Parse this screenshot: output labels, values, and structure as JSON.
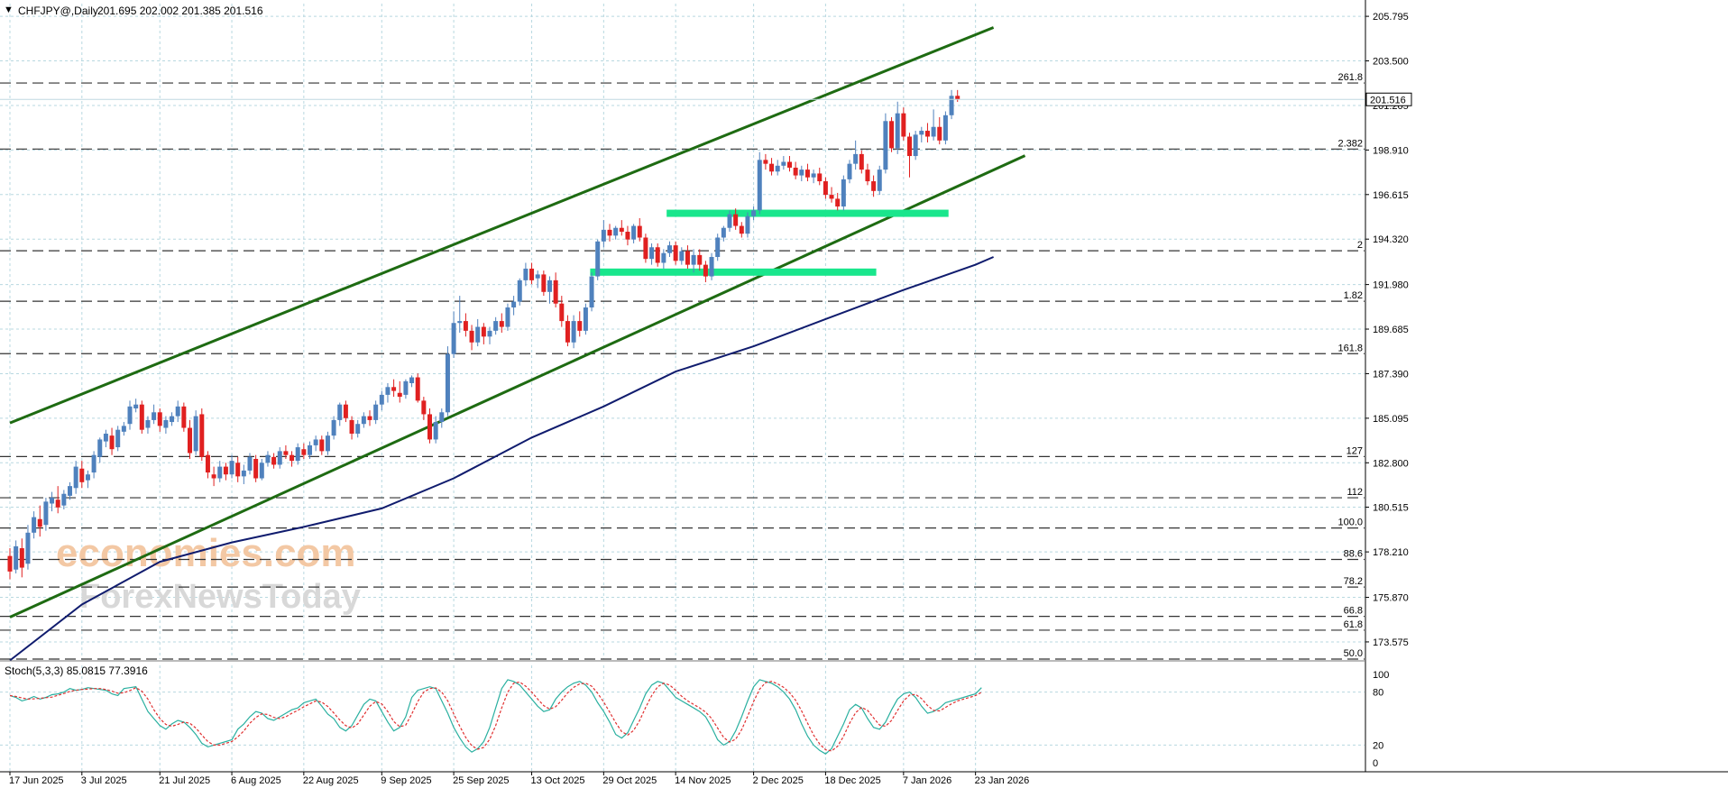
{
  "header": {
    "menu_arrow": "▼",
    "symbol": "CHFJPY@,Daily",
    "ohlc": "201.695 202.002 201.385 201.516"
  },
  "stoch_header": "Stoch(5,3,3) 85.0815 77.3916",
  "watermark": {
    "line1": "economies.com",
    "line2": "ForexNewsToday"
  },
  "colors": {
    "bull": "#4f81bd",
    "bear": "#e02020",
    "channel": "#1e6b12",
    "ma": "#101c6e",
    "zone": "#19e68c",
    "stoch_main": "#2ab0a0",
    "stoch_signal": "#e03030",
    "grid": "#b8d8e0",
    "fib": "#333333"
  },
  "price_axis": {
    "ticks": [
      "205.795",
      "203.500",
      "201.205",
      "198.910",
      "196.615",
      "194.320",
      "191.980",
      "189.685",
      "187.390",
      "185.095",
      "182.800",
      "180.515",
      "178.210",
      "175.870",
      "173.575"
    ],
    "current_price": "201.516"
  },
  "fib_levels": [
    {
      "label": "261.8",
      "price": 202.36
    },
    {
      "label": "2.382",
      "price": 198.96
    },
    {
      "label": "2",
      "price": 193.72
    },
    {
      "label": "1.82",
      "price": 191.12
    },
    {
      "label": "161.8",
      "price": 188.42
    },
    {
      "label": "127",
      "price": 183.12
    },
    {
      "label": "112",
      "price": 181.0
    },
    {
      "label": "100.0",
      "price": 179.44
    },
    {
      "label": "88.6",
      "price": 177.82
    },
    {
      "label": "78.2",
      "price": 176.4
    },
    {
      "label": "66.8",
      "price": 174.89
    },
    {
      "label": "61.8",
      "price": 174.18
    },
    {
      "label": "50.0",
      "price": 172.69
    }
  ],
  "stoch_axis": [
    "100",
    "80",
    "20",
    "0"
  ],
  "time_axis": [
    "17 Jun 2025",
    "3 Jul 2025",
    "21 Jul 2025",
    "6 Aug 2025",
    "22 Aug 2025",
    "9 Sep 2025",
    "25 Sep 2025",
    "13 Oct 2025",
    "29 Oct 2025",
    "14 Nov 2025",
    "2 Dec 2025",
    "18 Dec 2025",
    "7 Jan 2026",
    "23 Jan 2026"
  ],
  "chart_data": {
    "type": "candlestick",
    "title": "CHFJPY@,Daily",
    "ylim": [
      172.69,
      206.5
    ],
    "channel_upper": {
      "from": [
        "17 Jun 2025",
        184.85
      ],
      "to": [
        "27 Jan 2026",
        205.22
      ]
    },
    "channel_lower": {
      "from": [
        "17 Jun 2025",
        174.85
      ],
      "to": [
        "3 Feb 2026",
        198.62
      ]
    },
    "moving_average": [
      [
        "17 Jun 2025",
        172.62
      ],
      [
        "3 Jul 2025",
        175.5
      ],
      [
        "21 Jul 2025",
        177.7
      ],
      [
        "6 Aug 2025",
        178.7
      ],
      [
        "22 Aug 2025",
        179.5
      ],
      [
        "9 Sep 2025",
        180.45
      ],
      [
        "25 Sep 2025",
        182.0
      ],
      [
        "13 Oct 2025",
        184.1
      ],
      [
        "29 Oct 2025",
        185.7
      ],
      [
        "14 Nov 2025",
        187.5
      ],
      [
        "2 Dec 2025",
        188.8
      ],
      [
        "18 Dec 2025",
        190.2
      ],
      [
        "7 Jan 2026",
        191.7
      ],
      [
        "23 Jan 2026",
        193.0
      ],
      [
        "27 Jan 2026",
        193.4
      ]
    ],
    "zones": [
      {
        "from": "12 Nov 2025",
        "to": "17 Jan 2026",
        "price": 195.65
      },
      {
        "from": "26 Oct 2025",
        "to": "31 Dec 2025",
        "price": 192.62
      }
    ],
    "candles": [
      [
        178.0,
        178.4,
        176.8,
        177.2
      ],
      [
        177.3,
        178.8,
        177.1,
        178.5
      ],
      [
        178.4,
        178.9,
        176.9,
        177.4
      ],
      [
        177.6,
        179.6,
        177.3,
        179.2
      ],
      [
        179.2,
        180.3,
        178.9,
        180.0
      ],
      [
        179.9,
        180.6,
        179.0,
        179.5
      ],
      [
        179.6,
        181.0,
        179.3,
        180.8
      ],
      [
        180.7,
        181.3,
        180.3,
        181.0
      ],
      [
        180.9,
        181.6,
        180.2,
        180.5
      ],
      [
        180.6,
        181.4,
        180.4,
        181.2
      ],
      [
        181.1,
        181.8,
        180.9,
        181.6
      ],
      [
        181.5,
        182.9,
        181.2,
        182.6
      ],
      [
        182.5,
        182.9,
        181.5,
        181.8
      ],
      [
        181.9,
        182.4,
        181.5,
        182.2
      ],
      [
        182.3,
        183.4,
        182.0,
        183.2
      ],
      [
        183.1,
        184.1,
        182.8,
        184.0
      ],
      [
        183.9,
        184.5,
        183.6,
        184.3
      ],
      [
        184.2,
        184.6,
        183.2,
        183.5
      ],
      [
        183.6,
        184.7,
        183.4,
        184.5
      ],
      [
        184.4,
        184.9,
        184.2,
        184.7
      ],
      [
        184.8,
        186.0,
        184.5,
        185.7
      ],
      [
        185.6,
        186.1,
        185.4,
        185.8
      ],
      [
        185.8,
        186.0,
        184.3,
        184.5
      ],
      [
        184.6,
        185.2,
        184.3,
        185.0
      ],
      [
        185.0,
        185.8,
        184.8,
        185.4
      ],
      [
        185.4,
        185.6,
        184.4,
        184.7
      ],
      [
        184.6,
        185.2,
        184.3,
        185.0
      ],
      [
        184.9,
        185.4,
        184.7,
        185.2
      ],
      [
        185.2,
        186.0,
        184.9,
        185.7
      ],
      [
        185.7,
        185.9,
        184.4,
        184.6
      ],
      [
        184.6,
        185.0,
        183.0,
        183.3
      ],
      [
        183.4,
        185.5,
        183.2,
        185.2
      ],
      [
        185.3,
        185.6,
        182.9,
        183.1
      ],
      [
        183.2,
        183.4,
        182.0,
        182.3
      ],
      [
        182.2,
        182.6,
        181.6,
        182.0
      ],
      [
        182.0,
        182.9,
        181.8,
        182.6
      ],
      [
        182.6,
        182.8,
        181.9,
        182.2
      ],
      [
        182.2,
        183.2,
        182.0,
        182.9
      ],
      [
        182.8,
        183.1,
        181.8,
        182.1
      ],
      [
        182.1,
        182.7,
        181.7,
        182.4
      ],
      [
        182.4,
        183.3,
        182.2,
        183.1
      ],
      [
        183.0,
        183.2,
        181.8,
        182.0
      ],
      [
        182.0,
        183.0,
        181.9,
        182.8
      ],
      [
        182.8,
        183.4,
        182.6,
        183.2
      ],
      [
        183.1,
        183.3,
        182.5,
        182.7
      ],
      [
        182.7,
        183.6,
        182.5,
        183.4
      ],
      [
        183.4,
        183.7,
        183.0,
        183.2
      ],
      [
        183.2,
        183.4,
        182.6,
        182.9
      ],
      [
        182.9,
        183.8,
        182.7,
        183.6
      ],
      [
        183.5,
        183.8,
        183.0,
        183.2
      ],
      [
        183.2,
        183.9,
        183.0,
        183.7
      ],
      [
        183.7,
        184.2,
        183.4,
        184.0
      ],
      [
        184.0,
        184.2,
        183.2,
        183.4
      ],
      [
        183.4,
        184.4,
        183.2,
        184.2
      ],
      [
        184.2,
        185.2,
        184.0,
        185.0
      ],
      [
        185.0,
        185.9,
        184.7,
        185.8
      ],
      [
        185.8,
        186.0,
        184.9,
        185.1
      ],
      [
        185.0,
        185.2,
        184.0,
        184.3
      ],
      [
        184.3,
        185.0,
        184.1,
        184.8
      ],
      [
        184.8,
        185.4,
        184.6,
        185.2
      ],
      [
        185.2,
        185.5,
        184.7,
        185.0
      ],
      [
        185.0,
        186.0,
        184.8,
        185.8
      ],
      [
        185.8,
        186.5,
        185.5,
        186.3
      ],
      [
        186.3,
        186.9,
        185.9,
        186.7
      ],
      [
        186.7,
        187.1,
        186.2,
        186.5
      ],
      [
        186.4,
        187.0,
        185.9,
        186.2
      ],
      [
        186.3,
        187.1,
        186.1,
        187.0
      ],
      [
        186.9,
        187.3,
        186.7,
        187.2
      ],
      [
        187.2,
        187.4,
        185.9,
        186.0
      ],
      [
        186.0,
        186.2,
        185.0,
        185.3
      ],
      [
        185.3,
        185.6,
        183.8,
        184.0
      ],
      [
        184.0,
        185.2,
        183.8,
        184.9
      ],
      [
        184.9,
        185.6,
        184.6,
        185.4
      ],
      [
        185.4,
        188.8,
        185.2,
        188.4
      ],
      [
        188.4,
        190.6,
        188.2,
        190.0
      ],
      [
        190.0,
        191.4,
        189.5,
        190.1
      ],
      [
        190.1,
        190.5,
        189.3,
        189.6
      ],
      [
        189.6,
        189.9,
        188.6,
        189.0
      ],
      [
        189.0,
        190.2,
        188.8,
        189.8
      ],
      [
        189.8,
        190.0,
        188.9,
        189.3
      ],
      [
        189.3,
        189.8,
        188.9,
        189.6
      ],
      [
        189.6,
        190.3,
        189.4,
        190.1
      ],
      [
        190.1,
        190.5,
        189.5,
        189.8
      ],
      [
        189.8,
        191.0,
        189.6,
        190.8
      ],
      [
        190.8,
        191.4,
        190.4,
        191.1
      ],
      [
        191.1,
        192.3,
        190.9,
        192.2
      ],
      [
        192.2,
        193.1,
        191.9,
        192.8
      ],
      [
        192.8,
        193.1,
        192.0,
        192.2
      ],
      [
        192.3,
        192.7,
        191.8,
        192.5
      ],
      [
        192.5,
        192.7,
        191.4,
        191.6
      ],
      [
        191.6,
        192.4,
        191.0,
        192.2
      ],
      [
        192.2,
        192.6,
        190.8,
        191.0
      ],
      [
        191.0,
        191.4,
        189.8,
        190.1
      ],
      [
        190.1,
        190.4,
        188.8,
        189.0
      ],
      [
        189.0,
        190.4,
        188.7,
        190.1
      ],
      [
        190.1,
        190.6,
        189.3,
        189.6
      ],
      [
        189.6,
        191.0,
        189.4,
        190.8
      ],
      [
        190.8,
        192.6,
        190.6,
        192.4
      ],
      [
        192.4,
        194.3,
        192.2,
        194.2
      ],
      [
        194.2,
        195.3,
        193.9,
        194.8
      ],
      [
        194.8,
        195.1,
        194.2,
        194.5
      ],
      [
        194.5,
        195.0,
        194.3,
        194.9
      ],
      [
        194.9,
        195.3,
        194.5,
        194.7
      ],
      [
        194.7,
        195.0,
        194.0,
        194.3
      ],
      [
        194.3,
        195.1,
        194.1,
        195.0
      ],
      [
        195.0,
        195.4,
        194.2,
        194.4
      ],
      [
        194.4,
        194.6,
        193.1,
        193.3
      ],
      [
        193.3,
        194.1,
        193.0,
        193.9
      ],
      [
        193.9,
        194.1,
        192.9,
        193.1
      ],
      [
        193.1,
        193.8,
        192.8,
        193.6
      ],
      [
        193.6,
        194.2,
        193.4,
        194.0
      ],
      [
        194.0,
        194.2,
        193.0,
        193.2
      ],
      [
        193.2,
        193.9,
        193.0,
        193.7
      ],
      [
        193.7,
        194.0,
        192.8,
        193.0
      ],
      [
        193.0,
        193.8,
        192.6,
        193.5
      ],
      [
        193.5,
        193.8,
        192.7,
        193.0
      ],
      [
        193.0,
        193.2,
        192.1,
        192.4
      ],
      [
        192.4,
        193.6,
        192.2,
        193.4
      ],
      [
        193.4,
        194.6,
        193.2,
        194.4
      ],
      [
        194.4,
        195.0,
        194.2,
        194.9
      ],
      [
        194.9,
        195.8,
        194.7,
        195.6
      ],
      [
        195.6,
        195.9,
        194.8,
        195.0
      ],
      [
        195.0,
        195.2,
        194.4,
        194.6
      ],
      [
        194.6,
        195.7,
        194.4,
        195.5
      ],
      [
        195.5,
        196.0,
        195.3,
        195.8
      ],
      [
        195.8,
        198.8,
        195.6,
        198.4
      ],
      [
        198.4,
        198.7,
        197.9,
        198.2
      ],
      [
        198.2,
        198.5,
        197.6,
        197.8
      ],
      [
        197.8,
        198.4,
        197.6,
        198.1
      ],
      [
        198.1,
        198.6,
        197.9,
        198.3
      ],
      [
        198.3,
        198.6,
        197.8,
        198.0
      ],
      [
        198.0,
        198.3,
        197.4,
        197.6
      ],
      [
        197.6,
        198.1,
        197.3,
        197.9
      ],
      [
        197.9,
        198.2,
        197.3,
        197.5
      ],
      [
        197.5,
        197.9,
        197.2,
        197.7
      ],
      [
        197.7,
        198.0,
        197.1,
        197.3
      ],
      [
        197.3,
        197.5,
        196.4,
        196.6
      ],
      [
        196.6,
        197.0,
        196.2,
        196.4
      ],
      [
        196.4,
        196.7,
        195.8,
        196.0
      ],
      [
        196.0,
        197.6,
        195.8,
        197.4
      ],
      [
        197.4,
        198.4,
        197.2,
        198.2
      ],
      [
        198.2,
        199.4,
        197.9,
        198.7
      ],
      [
        198.7,
        198.9,
        197.7,
        197.9
      ],
      [
        197.9,
        198.2,
        197.1,
        197.3
      ],
      [
        197.3,
        197.6,
        196.5,
        196.8
      ],
      [
        196.8,
        198.1,
        196.6,
        197.9
      ],
      [
        197.9,
        200.8,
        197.7,
        200.4
      ],
      [
        200.4,
        200.6,
        198.8,
        199.0
      ],
      [
        199.0,
        201.4,
        198.7,
        200.8
      ],
      [
        200.8,
        201.1,
        199.4,
        199.6
      ],
      [
        199.6,
        199.8,
        197.5,
        198.6
      ],
      [
        198.6,
        199.9,
        198.4,
        199.7
      ],
      [
        199.7,
        200.1,
        199.3,
        199.9
      ],
      [
        199.9,
        200.3,
        199.3,
        199.6
      ],
      [
        199.6,
        201.0,
        199.4,
        200.1
      ],
      [
        200.1,
        200.6,
        199.2,
        199.4
      ],
      [
        199.4,
        200.9,
        199.2,
        200.7
      ],
      [
        200.7,
        202.0,
        200.5,
        201.7
      ],
      [
        201.7,
        202.0,
        201.39,
        201.52
      ]
    ],
    "stochastic": {
      "main": [
        76,
        74,
        70,
        72,
        75,
        72,
        74,
        77,
        78,
        80,
        84,
        82,
        83,
        85,
        84,
        83,
        82,
        78,
        76,
        84,
        85,
        86,
        72,
        58,
        50,
        42,
        38,
        44,
        48,
        46,
        40,
        32,
        22,
        18,
        20,
        22,
        24,
        26,
        38,
        44,
        52,
        58,
        56,
        50,
        48,
        52,
        56,
        60,
        62,
        68,
        70,
        72,
        64,
        55,
        50,
        40,
        36,
        42,
        54,
        66,
        72,
        70,
        58,
        46,
        36,
        40,
        52,
        74,
        82,
        84,
        86,
        84,
        70,
        56,
        40,
        28,
        18,
        12,
        16,
        24,
        40,
        62,
        84,
        94,
        92,
        88,
        80,
        72,
        64,
        58,
        60,
        72,
        80,
        86,
        90,
        92,
        88,
        80,
        68,
        58,
        46,
        32,
        28,
        34,
        48,
        62,
        78,
        88,
        92,
        90,
        82,
        74,
        70,
        66,
        62,
        58,
        52,
        40,
        26,
        20,
        24,
        36,
        52,
        70,
        86,
        94,
        92,
        90,
        86,
        80,
        72,
        60,
        44,
        30,
        20,
        14,
        10,
        16,
        30,
        44,
        60,
        66,
        62,
        50,
        40,
        38,
        46,
        60,
        72,
        78,
        80,
        74,
        64,
        56,
        58,
        62,
        68,
        70,
        72,
        74,
        76,
        78,
        85
      ]
    }
  }
}
